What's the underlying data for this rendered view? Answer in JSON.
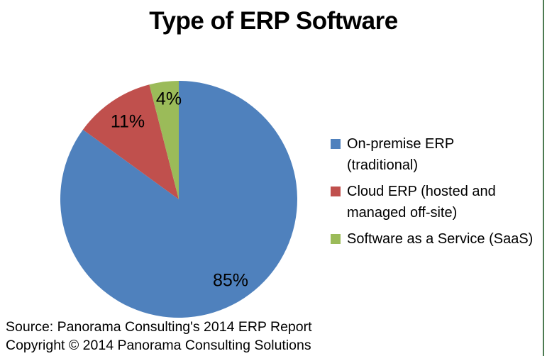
{
  "title": "Type of ERP Software",
  "chart_data": {
    "type": "pie",
    "title": "Type of ERP Software",
    "start_angle_deg": 0,
    "direction": "clockwise",
    "legend_position": "right",
    "slices": [
      {
        "label": "On-premise ERP (traditional)",
        "value": 85,
        "display": "85%",
        "color": "#4F81BD"
      },
      {
        "label": "Cloud ERP (hosted and managed off-site)",
        "value": 11,
        "display": "11%",
        "color": "#C0504D"
      },
      {
        "label": "Software as a Service (SaaS)",
        "value": 4,
        "display": "4%",
        "color": "#9BBB59"
      }
    ]
  },
  "legend": {
    "items": [
      {
        "lines": [
          "On-premise ERP",
          "(traditional)"
        ],
        "color": "#4F81BD"
      },
      {
        "lines": [
          "Cloud ERP (hosted and",
          "managed off-site)"
        ],
        "color": "#C0504D"
      },
      {
        "lines": [
          "Software as a Service (SaaS)"
        ],
        "color": "#9BBB59"
      }
    ]
  },
  "footer": {
    "source_line": "Source: Panorama Consulting's 2014 ERP Report",
    "copyright_line": "Copyright © 2014 Panorama Consulting Solutions"
  },
  "colors": {
    "on_premise_blue": "#4F81BD",
    "cloud_red": "#C0504D",
    "saas_green": "#9BBB59",
    "right_edge_line": "#4d7b52",
    "background": "#ffffff",
    "text": "#000000"
  }
}
